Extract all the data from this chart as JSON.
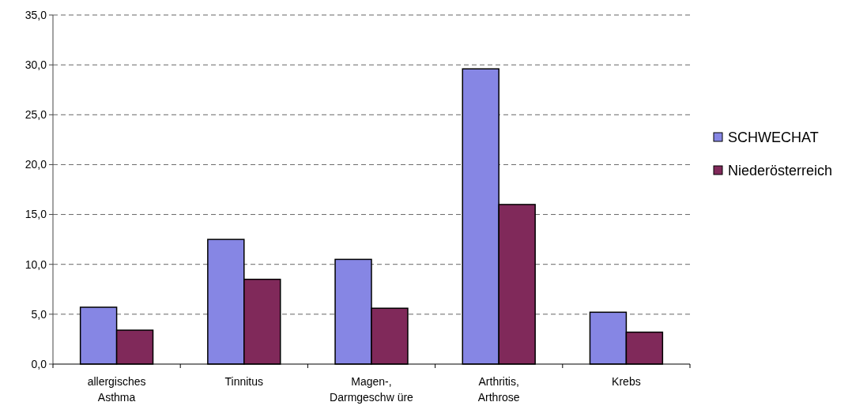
{
  "chart_data": {
    "type": "bar",
    "categories": [
      "allergisches Asthma",
      "Tinnitus",
      "Magen-, Darmgeschw üre",
      "Arthritis, Arthrose",
      "Krebs"
    ],
    "series": [
      {
        "name": "SCHWECHAT",
        "color": "#8686e4",
        "values": [
          5.7,
          12.5,
          10.5,
          29.6,
          5.2
        ]
      },
      {
        "name": "Niederösterreich",
        "color": "#80295a",
        "values": [
          3.4,
          8.5,
          5.6,
          16.0,
          3.2
        ]
      }
    ],
    "ylim": [
      0,
      35
    ],
    "yticks": [
      {
        "value": 0,
        "label": "0,0"
      },
      {
        "value": 5,
        "label": "5,0"
      },
      {
        "value": 10,
        "label": "10,0"
      },
      {
        "value": 15,
        "label": "15,0"
      },
      {
        "value": 20,
        "label": "20,0"
      },
      {
        "value": 25,
        "label": "25,0"
      },
      {
        "value": 30,
        "label": "30,0"
      },
      {
        "value": 35,
        "label": "35,0"
      }
    ],
    "grid": "y",
    "legend": "right"
  }
}
